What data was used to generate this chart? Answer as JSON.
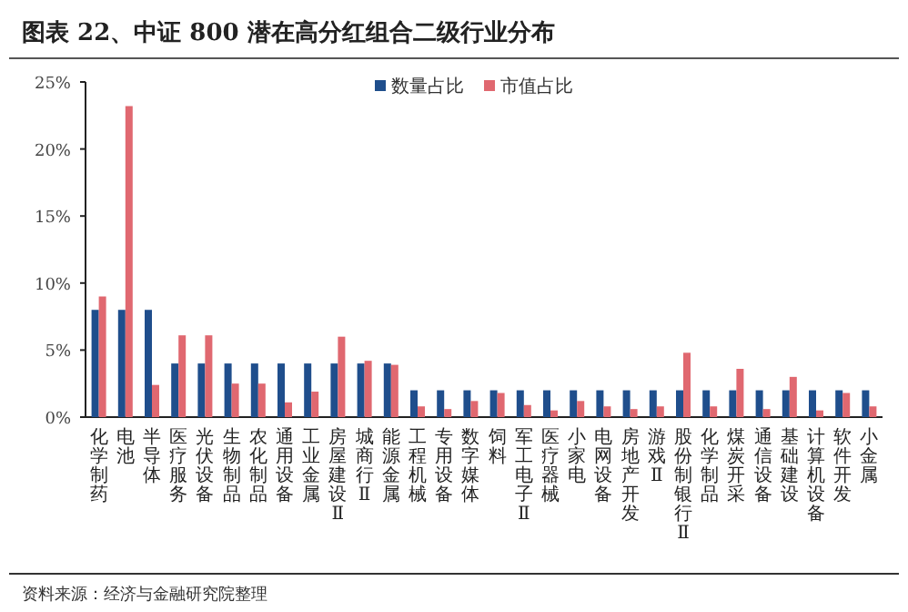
{
  "chart_data": {
    "type": "bar",
    "title": "图表 22、中证 800 潜在高分红组合二级行业分布",
    "categories": [
      "化学制药",
      "电池",
      "半导体",
      "医疗服务",
      "光伏设备",
      "生物制品",
      "农化制品",
      "通用设备",
      "工业金属",
      "房屋建设Ⅱ",
      "城商行Ⅱ",
      "能源金属",
      "工程机械",
      "专用设备",
      "数字媒体",
      "饲料",
      "军工电子Ⅱ",
      "医疗器械",
      "小家电",
      "电网设备",
      "房地产开发",
      "游戏Ⅱ",
      "股份制银行Ⅱ",
      "化学制品",
      "煤炭开采",
      "通信设备",
      "基础建设",
      "计算机设备",
      "软件开发",
      "小金属"
    ],
    "series": [
      {
        "name": "数量占比",
        "color": "#1f4e8c",
        "values": [
          8,
          8,
          8,
          4,
          4,
          4,
          4,
          4,
          4,
          4,
          4,
          4,
          2,
          2,
          2,
          2,
          2,
          2,
          2,
          2,
          2,
          2,
          2,
          2,
          2,
          2,
          2,
          2,
          2,
          2
        ]
      },
      {
        "name": "市值占比",
        "color": "#e06870",
        "values": [
          9.0,
          23.2,
          2.4,
          6.1,
          6.1,
          2.5,
          2.5,
          1.1,
          1.9,
          6.0,
          4.2,
          3.9,
          0.8,
          0.6,
          1.2,
          1.8,
          0.9,
          0.5,
          1.2,
          0.8,
          0.6,
          0.8,
          4.8,
          0.8,
          3.6,
          0.6,
          3.0,
          0.5,
          1.8,
          0.8
        ]
      }
    ],
    "ylim": [
      0,
      25
    ],
    "yticks": [
      {
        "value": 0,
        "label": "0%"
      },
      {
        "value": 5,
        "label": "5%"
      },
      {
        "value": 10,
        "label": "10%"
      },
      {
        "value": 15,
        "label": "15%"
      },
      {
        "value": 20,
        "label": "20%"
      },
      {
        "value": 25,
        "label": "25%"
      }
    ],
    "legend": "top",
    "annotations": [
      "资料来源：经济与金融研究院整理"
    ]
  }
}
